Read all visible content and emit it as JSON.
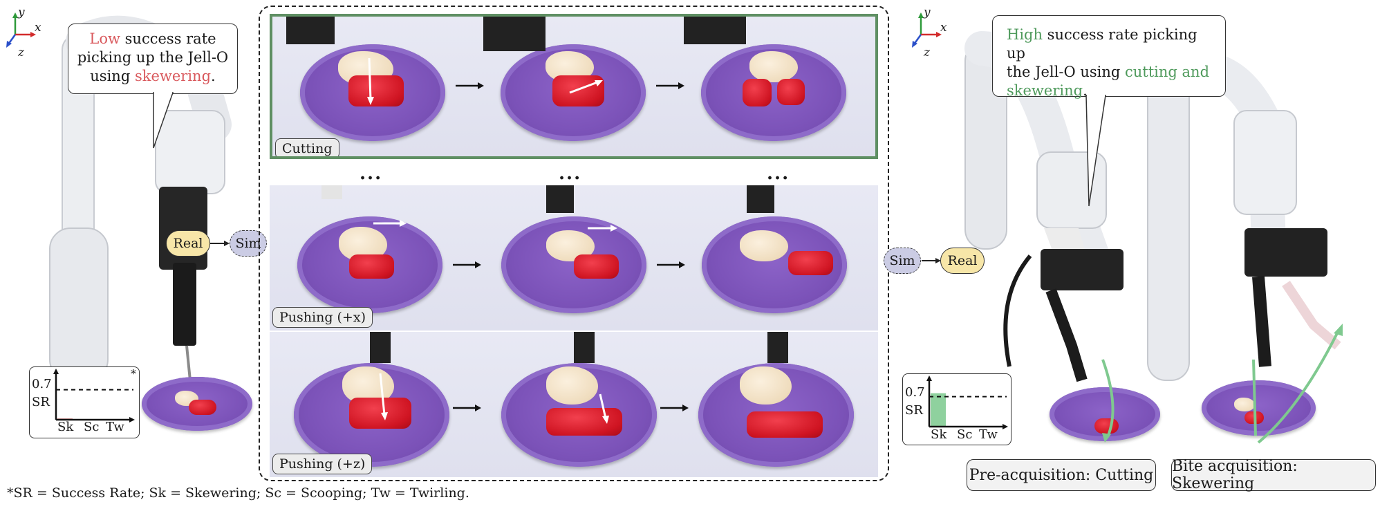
{
  "left_panel": {
    "axes": {
      "y": "y",
      "x": "x",
      "z": "z"
    },
    "bubble": {
      "highlight": "Low",
      "line1_rest": " success rate",
      "line2": "picking up the Jell-O",
      "line3_pre": "using ",
      "line3_highlight": "skewering",
      "line3_post": "."
    },
    "real_label": "Real",
    "sim_label": "Sim",
    "sr_chart": {
      "asterisk": "*",
      "threshold_label": "0.7",
      "ylabel": "SR",
      "categories": [
        "Sk",
        "Sc",
        "Tw"
      ]
    }
  },
  "central_panel": {
    "rows": [
      {
        "label": "Cutting"
      },
      {
        "label": "Pushing (+x)"
      },
      {
        "label": "Pushing (+z)"
      }
    ],
    "ellipsis": "..."
  },
  "right_panel": {
    "axes": {
      "y": "y",
      "x": "x",
      "z": "z"
    },
    "bubble": {
      "highlight1": "High",
      "line1_rest": " success rate picking up",
      "line2_pre": "the Jell-O using ",
      "line2_highlight": "cutting and",
      "line3_highlight": "skewering",
      "line3_post": "."
    },
    "sim_label": "Sim",
    "real_label": "Real",
    "sr_chart": {
      "threshold_label": "0.7",
      "ylabel": "SR",
      "categories": [
        "Sk",
        "Sc",
        "Tw"
      ]
    },
    "caption_pre": "Pre-acquisition: Cutting",
    "caption_bite": "Bite acquisition: Skewering"
  },
  "chart_data": [
    {
      "type": "bar",
      "title": "",
      "ylabel": "SR",
      "categories": [
        "Sk",
        "Sc",
        "Tw"
      ],
      "values": [
        0.02,
        0,
        0
      ],
      "threshold": 0.7,
      "colors": {
        "bar": "#e6a6a6"
      }
    },
    {
      "type": "bar",
      "title": "",
      "ylabel": "SR",
      "categories": [
        "Sk",
        "Sc",
        "Tw"
      ],
      "values": [
        0.78,
        0,
        0
      ],
      "threshold": 0.7,
      "colors": {
        "bar": "#8fd19e"
      }
    }
  ],
  "footnote": "*SR = Success Rate; Sk = Skewering; Sc = Scooping; Tw = Twirling.",
  "colors": {
    "low": "#d9595d",
    "high": "#4f9a5c",
    "real": "#f7e6a8",
    "sim": "#cbcce4",
    "cutting_frame": "#5f8f63",
    "plate": "#7b52b8",
    "jello": "#cf1422"
  }
}
